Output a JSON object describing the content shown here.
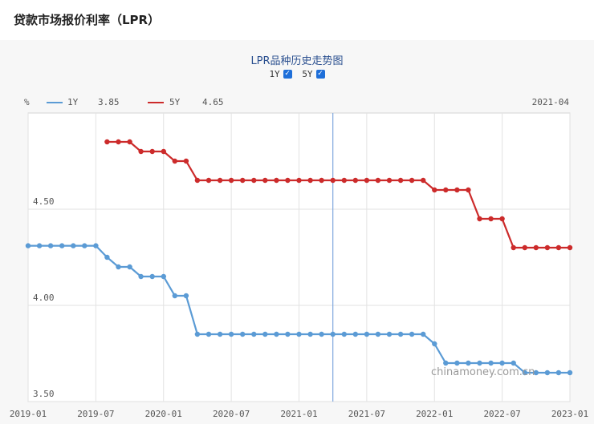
{
  "page": {
    "title": "贷款市场报价利率（LPR）"
  },
  "chart": {
    "title": "LPR品种历史走势图",
    "toggles": [
      {
        "label": "1Y",
        "checked": true
      },
      {
        "label": "5Y",
        "checked": true
      }
    ],
    "unit": "%",
    "hover_date": "2021-04",
    "watermark": "chinamoney.com.cn"
  },
  "chart_data": {
    "type": "line",
    "x_start": "2019-01",
    "x_end": "2023-01",
    "x_ticks": [
      "2019-01",
      "2019-07",
      "2020-01",
      "2020-07",
      "2021-01",
      "2021-07",
      "2022-01",
      "2022-07",
      "2023-01"
    ],
    "y_ticks": [
      "4.50",
      "4.00",
      "3.50"
    ],
    "ylim": [
      3.5,
      5.0
    ],
    "grid": true,
    "legend": "top-left",
    "crosshair_x": "2021-04",
    "series": [
      {
        "name": "1Y",
        "color": "#5b9bd5",
        "hover_value": "3.85",
        "start": "2019-01",
        "values": [
          4.31,
          4.31,
          4.31,
          4.31,
          4.31,
          4.31,
          4.31,
          4.25,
          4.2,
          4.2,
          4.15,
          4.15,
          4.15,
          4.05,
          4.05,
          3.85,
          3.85,
          3.85,
          3.85,
          3.85,
          3.85,
          3.85,
          3.85,
          3.85,
          3.85,
          3.85,
          3.85,
          3.85,
          3.85,
          3.85,
          3.85,
          3.85,
          3.85,
          3.85,
          3.85,
          3.85,
          3.8,
          3.7,
          3.7,
          3.7,
          3.7,
          3.7,
          3.7,
          3.7,
          3.65,
          3.65,
          3.65,
          3.65,
          3.65
        ]
      },
      {
        "name": "5Y",
        "color": "#cc2b2b",
        "hover_value": "4.65",
        "start": "2019-08",
        "values": [
          4.85,
          4.85,
          4.85,
          4.8,
          4.8,
          4.8,
          4.75,
          4.75,
          4.65,
          4.65,
          4.65,
          4.65,
          4.65,
          4.65,
          4.65,
          4.65,
          4.65,
          4.65,
          4.65,
          4.65,
          4.65,
          4.65,
          4.65,
          4.65,
          4.65,
          4.65,
          4.65,
          4.65,
          4.65,
          4.6,
          4.6,
          4.6,
          4.6,
          4.45,
          4.45,
          4.45,
          4.3,
          4.3,
          4.3,
          4.3,
          4.3,
          4.3
        ]
      }
    ]
  }
}
